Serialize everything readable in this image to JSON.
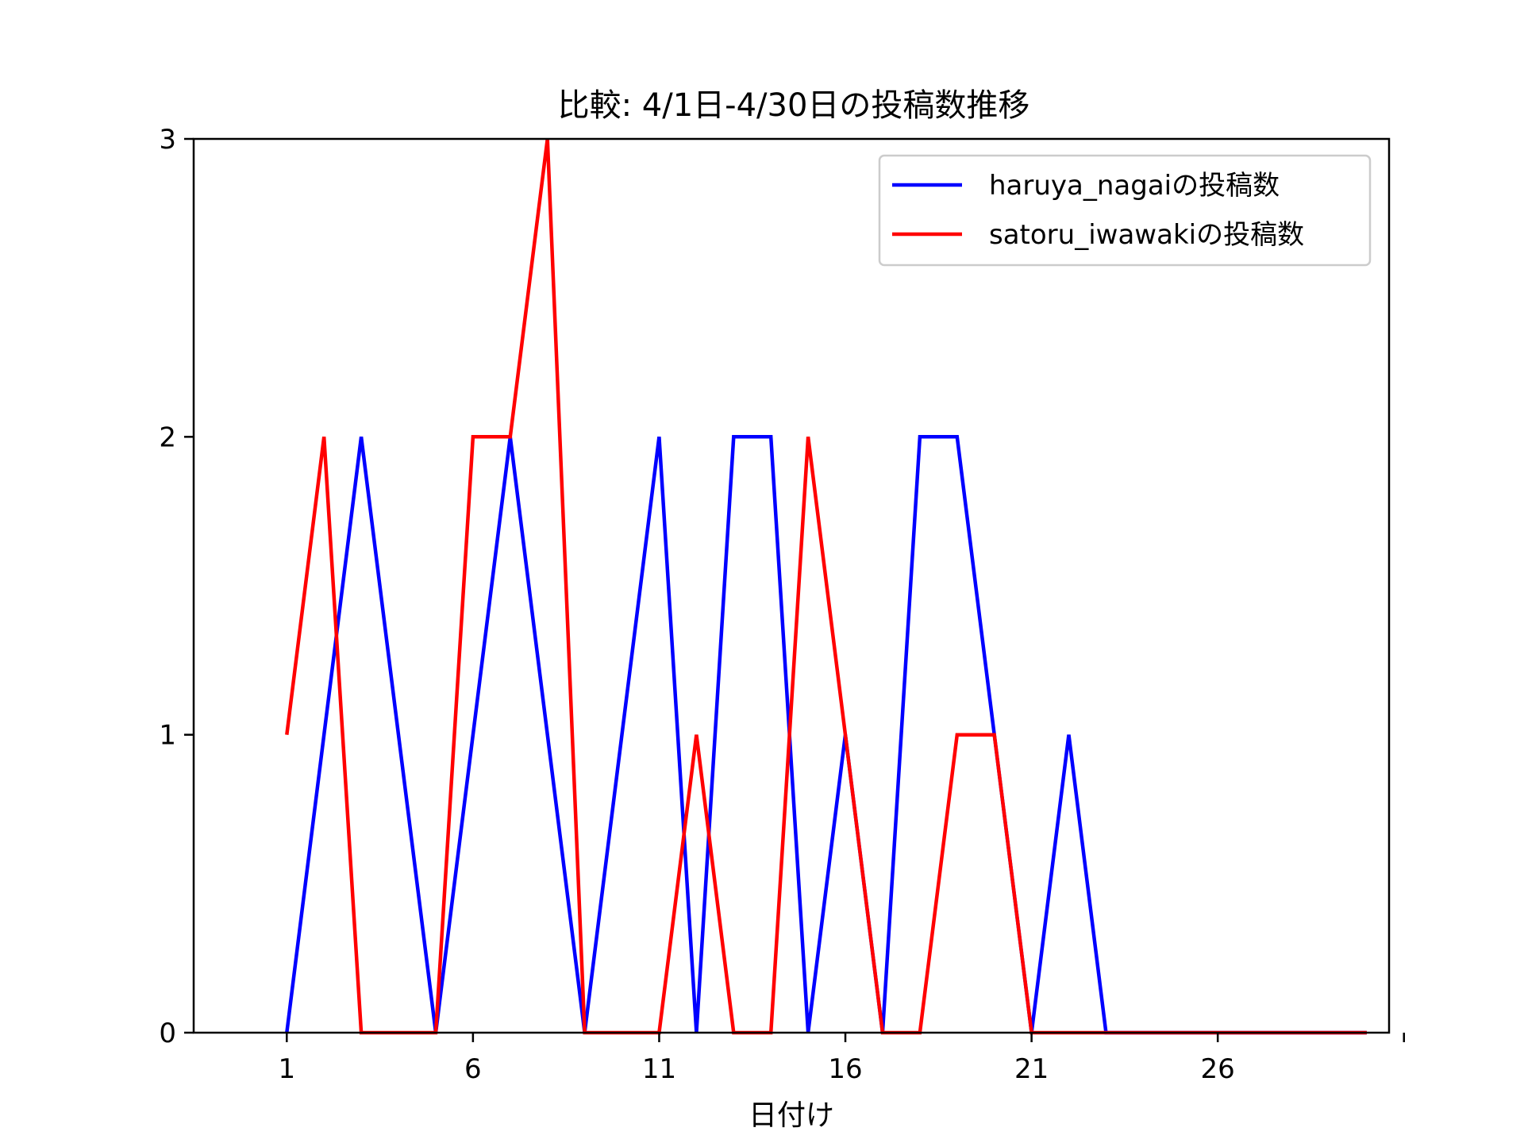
{
  "chart_data": {
    "type": "line",
    "title": "比較: 4/1日-4/30日の投稿数推移",
    "xlabel": "日付け",
    "ylabel": "",
    "xlim": [
      -1.5,
      30.6
    ],
    "ylim": [
      0,
      3
    ],
    "xticks": [
      1,
      6,
      11,
      16,
      21,
      26
    ],
    "yticks": [
      0,
      1,
      2,
      3
    ],
    "extra_xtick_marks": [
      31
    ],
    "grid": false,
    "legend_position": "top-right",
    "x": [
      1,
      2,
      3,
      4,
      5,
      6,
      7,
      8,
      9,
      10,
      11,
      12,
      13,
      14,
      15,
      16,
      17,
      18,
      19,
      20,
      21,
      22,
      23,
      24,
      25,
      26,
      27,
      28,
      29,
      30
    ],
    "series": [
      {
        "name": "haruya_nagaiの投稿数",
        "color": "#0000ff",
        "values": [
          0,
          1,
          2,
          1,
          0,
          1,
          2,
          1,
          0,
          1,
          2,
          0,
          2,
          2,
          0,
          1,
          0,
          2,
          2,
          1,
          0,
          1,
          0,
          0,
          0,
          0,
          0,
          0,
          0,
          0
        ]
      },
      {
        "name": "satoru_iwawakiの投稿数",
        "color": "#ff0000",
        "values": [
          1,
          2,
          0,
          0,
          0,
          2,
          2,
          3,
          0,
          0,
          0,
          1,
          0,
          0,
          2,
          1,
          0,
          0,
          1,
          1,
          0,
          0,
          0,
          0,
          0,
          0,
          0,
          0,
          0,
          0
        ]
      }
    ]
  }
}
